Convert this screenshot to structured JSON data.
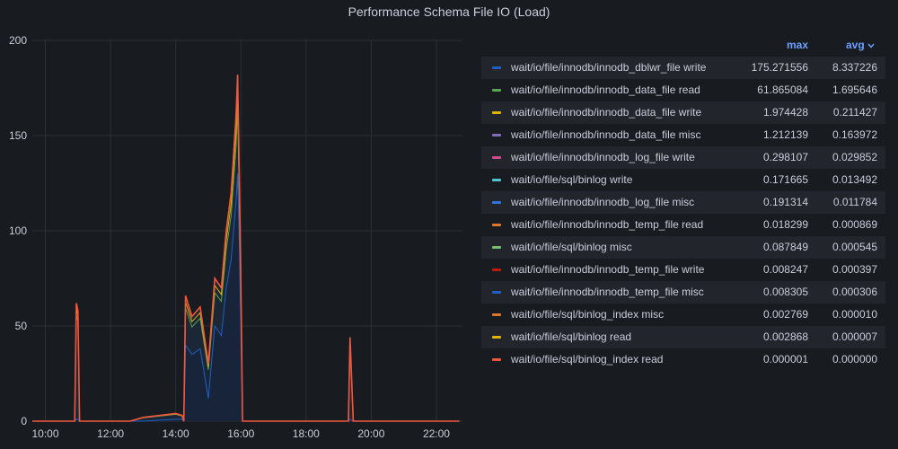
{
  "panel": {
    "title": "Performance Schema File IO (Load)"
  },
  "legend": {
    "header_max": "max",
    "header_avg": "avg",
    "sort_indicator": "chevron-down-icon",
    "rows": [
      {
        "name": "wait/io/file/innodb/innodb_dblwr_file write",
        "max": "175.271556",
        "avg": "8.337226",
        "color": "#1f60c4"
      },
      {
        "name": "wait/io/file/innodb/innodb_data_file read",
        "max": "61.865084",
        "avg": "1.695646",
        "color": "#56a64b"
      },
      {
        "name": "wait/io/file/innodb/innodb_data_file write",
        "max": "1.974428",
        "avg": "0.211427",
        "color": "#e0b400"
      },
      {
        "name": "wait/io/file/innodb/innodb_data_file misc",
        "max": "1.212139",
        "avg": "0.163972",
        "color": "#806eb7"
      },
      {
        "name": "wait/io/file/innodb/innodb_log_file write",
        "max": "0.298107",
        "avg": "0.029852",
        "color": "#d44a8f"
      },
      {
        "name": "wait/io/file/sql/binlog write",
        "max": "0.171665",
        "avg": "0.013492",
        "color": "#4fc4d0"
      },
      {
        "name": "wait/io/file/innodb/innodb_log_file misc",
        "max": "0.191314",
        "avg": "0.011784",
        "color": "#3274d9"
      },
      {
        "name": "wait/io/file/innodb/innodb_temp_file read",
        "max": "0.018299",
        "avg": "0.000869",
        "color": "#e0752d"
      },
      {
        "name": "wait/io/file/sql/binlog misc",
        "max": "0.087849",
        "avg": "0.000545",
        "color": "#73bf69"
      },
      {
        "name": "wait/io/file/innodb/innodb_temp_file write",
        "max": "0.008247",
        "avg": "0.000397",
        "color": "#bf1b00"
      },
      {
        "name": "wait/io/file/innodb/innodb_temp_file misc",
        "max": "0.008305",
        "avg": "0.000306",
        "color": "#1f60c4"
      },
      {
        "name": "wait/io/file/sql/binlog_index misc",
        "max": "0.002769",
        "avg": "0.000010",
        "color": "#e0752d"
      },
      {
        "name": "wait/io/file/sql/binlog read",
        "max": "0.002868",
        "avg": "0.000007",
        "color": "#e0b400"
      },
      {
        "name": "wait/io/file/sql/binlog_index read",
        "max": "0.000001",
        "avg": "0.000000",
        "color": "#f2573e"
      }
    ]
  },
  "chart_data": {
    "type": "area",
    "title": "Performance Schema File IO (Load)",
    "xlabel": "",
    "ylabel": "",
    "ylim": [
      0,
      200
    ],
    "y_ticks": [
      "0",
      "50",
      "100",
      "150",
      "200"
    ],
    "x_ticks": [
      "10:00",
      "12:00",
      "14:00",
      "16:00",
      "18:00",
      "20:00",
      "22:00"
    ],
    "x_hours": [
      9.6,
      10.9,
      10.95,
      11.0,
      11.05,
      11.1,
      12.6,
      13.0,
      14.0,
      14.2,
      14.25,
      14.3,
      14.5,
      14.75,
      15.0,
      15.2,
      15.4,
      15.55,
      15.7,
      15.85,
      15.9,
      15.95,
      16.0,
      16.05,
      19.3,
      19.35,
      19.45,
      22.7
    ],
    "total_load": [
      0,
      0,
      62,
      58,
      0,
      0,
      0,
      2,
      4,
      3,
      0,
      66,
      55,
      60,
      30,
      75,
      70,
      100,
      120,
      160,
      182,
      130,
      75,
      0,
      0,
      44,
      0,
      0
    ],
    "dblwr_load": [
      0,
      0,
      1,
      1,
      0,
      0,
      0,
      0,
      1,
      1,
      0,
      40,
      35,
      38,
      12,
      50,
      45,
      70,
      85,
      115,
      130,
      95,
      48,
      0,
      0,
      1,
      0,
      0
    ],
    "grid": true,
    "colors": {
      "background": "#181b1f",
      "grid": "#2c3036",
      "fill": "#1b2636",
      "dblwr": "#1f60c4",
      "data_read": "#56a64b",
      "data_write": "#e0b400",
      "top_line": "#f2573e"
    }
  }
}
